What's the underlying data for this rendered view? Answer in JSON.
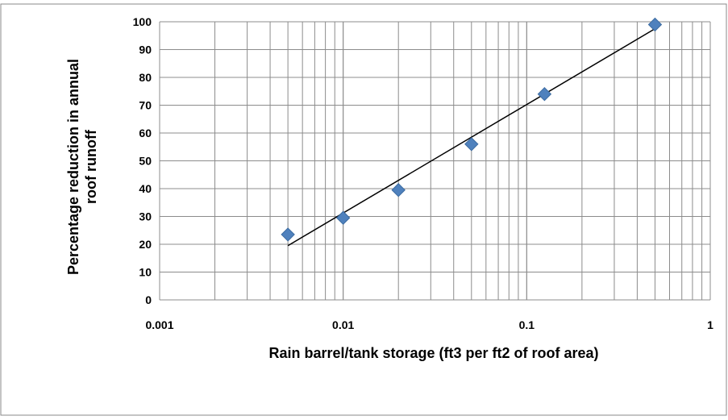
{
  "chart_data": {
    "type": "scatter",
    "title": "",
    "xlabel": "Rain barrel/tank storage (ft3 per ft2 of roof area)",
    "ylabel_lines": [
      "Percentage reduction in annual",
      "roof runoff"
    ],
    "x_scale": "log",
    "xlim": [
      0.001,
      1
    ],
    "ylim": [
      0,
      100
    ],
    "x_ticks": [
      0.001,
      0.01,
      0.1,
      1
    ],
    "x_tick_labels": [
      "0.001",
      "0.01",
      "0.1",
      "1"
    ],
    "y_ticks": [
      0,
      10,
      20,
      30,
      40,
      50,
      60,
      70,
      80,
      90,
      100
    ],
    "y_tick_labels": [
      "0",
      "10",
      "20",
      "30",
      "40",
      "50",
      "60",
      "70",
      "80",
      "90",
      "100"
    ],
    "grid": true,
    "legend": "none",
    "marker": "diamond",
    "marker_color": "#4f81bd",
    "trendline_color": "#000000",
    "points": [
      {
        "x": 0.005,
        "y": 23.5
      },
      {
        "x": 0.01,
        "y": 29.5
      },
      {
        "x": 0.02,
        "y": 39.5
      },
      {
        "x": 0.05,
        "y": 56
      },
      {
        "x": 0.125,
        "y": 74
      },
      {
        "x": 0.5,
        "y": 99
      }
    ],
    "trendline": {
      "x": [
        0.005,
        0.5
      ],
      "y": [
        19.5,
        97.5
      ]
    }
  }
}
